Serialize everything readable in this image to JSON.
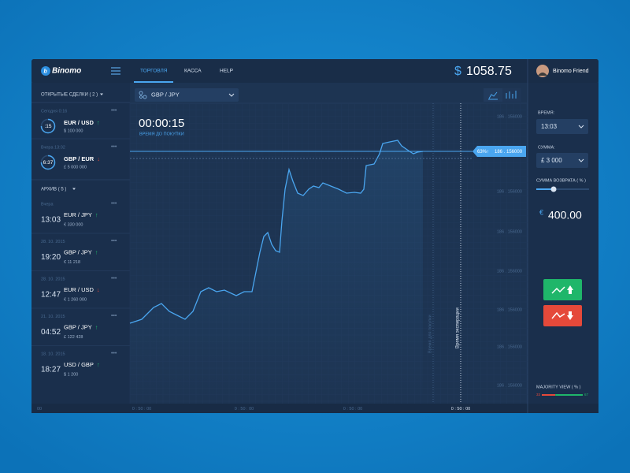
{
  "header": {
    "logo": "Binomo",
    "nav": [
      "ТОРГОВЛЯ",
      "КАССА",
      "HELP"
    ],
    "balance_currency": "$",
    "balance": "1058.75",
    "user": "Binomo Friend"
  },
  "sidebar": {
    "open_title": "ОТКРЫТЫЕ СДЕЛКИ ( 2 )",
    "open_trades": [
      {
        "date": "Сегодня 0:16",
        "timer": ":15",
        "pair": "EUR / USD",
        "arrow": "↑",
        "amount": "$ 100 000"
      },
      {
        "date": "Вчера 13:02",
        "timer": "6:37",
        "pair": "GBP / EUR",
        "arrow": "↓",
        "amount": "£ 5 000 000"
      }
    ],
    "archive_title": "АРХИВ ( 5 )",
    "archive": [
      {
        "date": "Вчера",
        "time": "13:03",
        "pair": "EUR / JPY",
        "arrow": "↑",
        "amount": "€ 330 000"
      },
      {
        "date": "28. 10. 2015",
        "time": "19:20",
        "pair": "GBP / JPY",
        "arrow": "↑",
        "amount": "€ 11 218"
      },
      {
        "date": "28. 10. 2015",
        "time": "12:47",
        "pair": "EUR / USD",
        "arrow": "↓",
        "amount": "€ 1 260 000"
      },
      {
        "date": "21. 10. 2015",
        "time": "04:52",
        "pair": "GBP / JPY",
        "arrow": "↑",
        "amount": "£ 122 428"
      },
      {
        "date": "18. 10. 2015",
        "time": "18:27",
        "pair": "USD / GBP",
        "arrow": "↑",
        "amount": "$ 1 200"
      }
    ]
  },
  "chart": {
    "pair": "GBP / JPY",
    "timer": "00:00:15",
    "timer_label": "ВРЕМЯ ДО ПОКУПКИ",
    "price_labels": [
      "186 . 156000",
      "186 . 156000",
      "186 . 156000",
      "186 . 156000",
      "186 . 156000",
      "186 . 156000",
      "186 . 156000"
    ],
    "current_percent": "63%↑",
    "current_price": "186 . 156000",
    "time_labels": [
      "00",
      "0 : 50 : 00",
      "0 : 50 : 00",
      "0 : 50 : 00",
      "0 : 50 : 00"
    ],
    "purchase_line_label": "Время для покупки",
    "expiry_line_label": "Время экспирации"
  },
  "panel": {
    "time_label": "ВРЕМЯ:",
    "time": "13:03",
    "amount_label": "СУММА:",
    "amount": "£ 3 000",
    "return_label": "СУММА ВОЗВРАТА ( % )",
    "return_currency": "€",
    "return_value": "400.00",
    "majority_label": "MAJORITY VIEW ( % )",
    "majority_low": 33,
    "majority_high": 67
  }
}
